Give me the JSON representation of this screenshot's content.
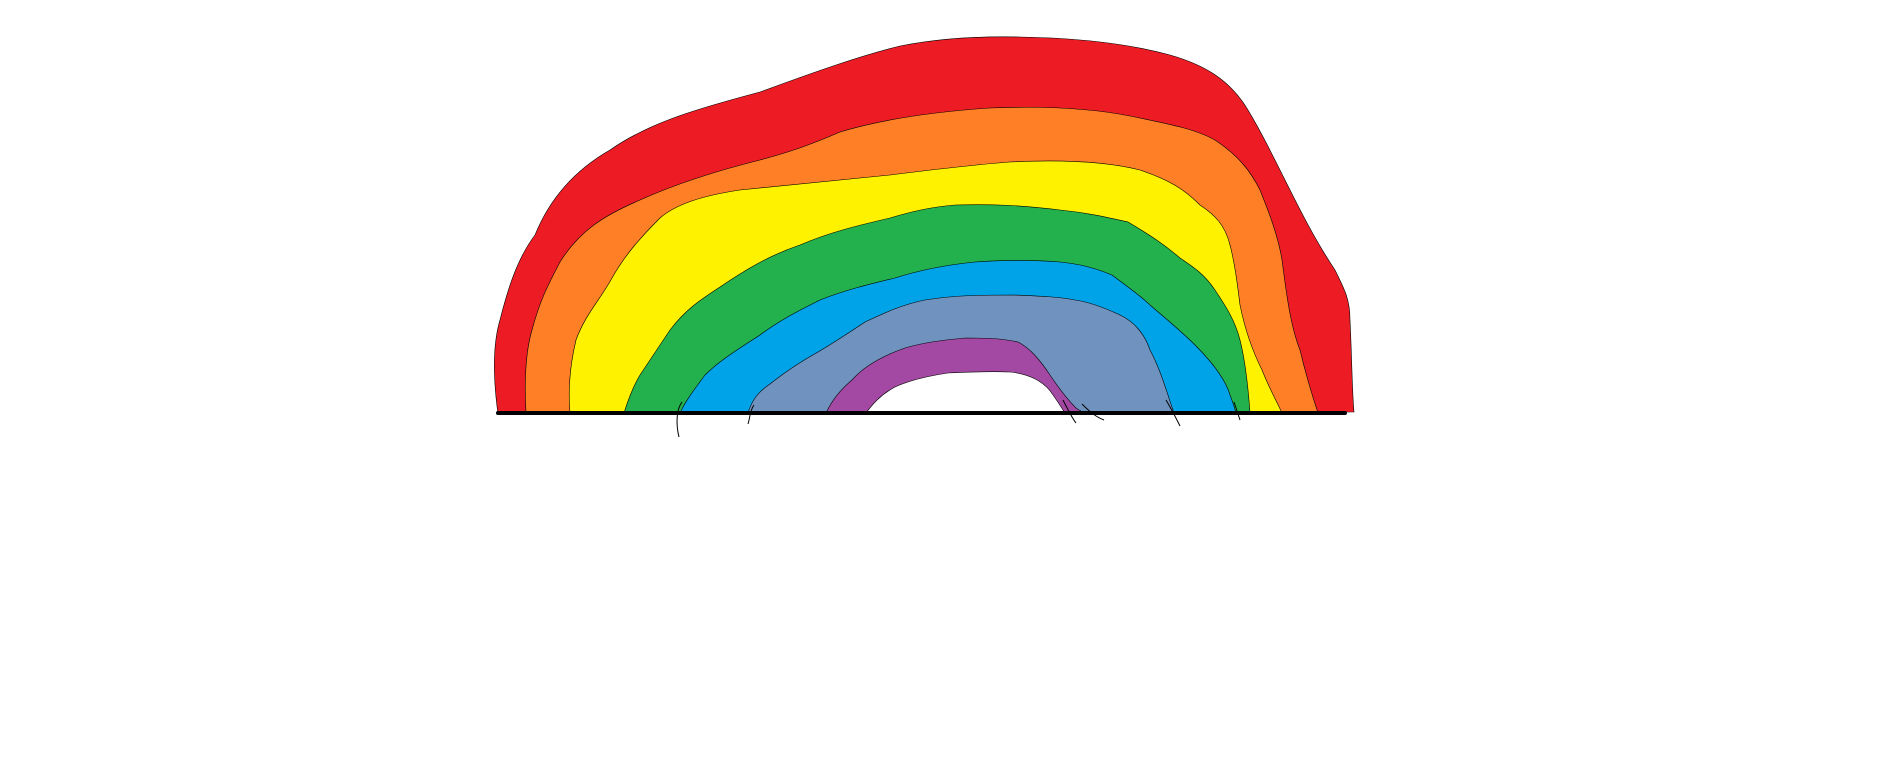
{
  "drawing": {
    "subject": "rainbow",
    "band_colors": {
      "red": "#ed1c24",
      "orange": "#ff7f27",
      "yellow": "#fff200",
      "green": "#22b14c",
      "blue": "#00a2e8",
      "steel_blue": "#7092be",
      "purple": "#a349a4"
    },
    "ground_line_color": "#000000",
    "background_color": "#ffffff"
  }
}
